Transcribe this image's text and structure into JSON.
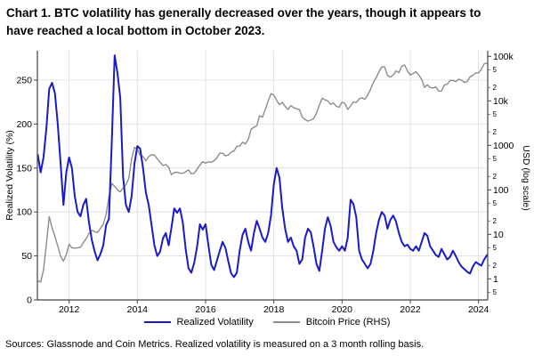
{
  "page": {
    "background": "#ffffff"
  },
  "title": "Chart 1. BTC volatility has generally decreased over the years, though it appears to have reached a local bottom in October 2023.",
  "source_note": "Sources: Glassnode and Coin Metrics. Realized volatility is measured on a 3 month rolling basis.",
  "legend": [
    {
      "label": "Realized Volatility",
      "color": "#1a1ac8"
    },
    {
      "label": "Bitcoin Price (RHS)",
      "color": "#8c8c8c"
    }
  ],
  "chart_data": {
    "type": "line",
    "title": "Chart 1. BTC volatility has generally decreased over the years, though it appears to have reached a local bottom in October 2023.",
    "grid": true,
    "legend_position": "bottom",
    "x_axis": {
      "label": "",
      "ticks": [
        2012,
        2014,
        2016,
        2018,
        2020,
        2022,
        2024
      ],
      "range": [
        2011.07,
        2024.27
      ]
    },
    "left_axis": {
      "label": "Realized Volatility (%)",
      "ticks": [
        0,
        50,
        100,
        150,
        200,
        250
      ],
      "range": [
        0,
        283
      ]
    },
    "right_axis": {
      "label": "USD (log scale)",
      "scale": "log",
      "range": [
        0.34,
        100000
      ],
      "major_ticks": [
        {
          "label": "100k",
          "value": 100000
        },
        {
          "label": "10k",
          "value": 10000
        },
        {
          "label": "1000",
          "value": 1000
        },
        {
          "label": "100",
          "value": 100
        },
        {
          "label": "10",
          "value": 10
        },
        {
          "label": "1",
          "value": 1
        }
      ],
      "minor_ticks": [
        {
          "label": "5",
          "value": 50000
        },
        {
          "label": "2",
          "value": 20000
        },
        {
          "label": "5",
          "value": 5000
        },
        {
          "label": "2",
          "value": 2000
        },
        {
          "label": "5",
          "value": 500
        },
        {
          "label": "2",
          "value": 200
        },
        {
          "label": "5",
          "value": 50
        },
        {
          "label": "2",
          "value": 20
        },
        {
          "label": "5",
          "value": 5
        },
        {
          "label": "2",
          "value": 2
        },
        {
          "label": "5",
          "value": 0.5
        }
      ]
    },
    "x_start": 2011.0833,
    "x_step": 0.083333,
    "series": [
      {
        "name": "Realized Volatility",
        "axis": "left",
        "unit": "%",
        "color": "#1a1ac8",
        "width": 2,
        "values": [
          165,
          145,
          162,
          195,
          240,
          247,
          235,
          200,
          155,
          108,
          145,
          162,
          150,
          118,
          100,
          95,
          108,
          115,
          88,
          68,
          55,
          45,
          52,
          62,
          85,
          92,
          180,
          278,
          258,
          230,
          140,
          108,
          100,
          118,
          155,
          175,
          172,
          150,
          122,
          108,
          85,
          62,
          50,
          55,
          70,
          76,
          62,
          82,
          104,
          99,
          104,
          88,
          58,
          36,
          31,
          42,
          60,
          86,
          80,
          86,
          62,
          40,
          34,
          45,
          56,
          66,
          59,
          44,
          30,
          26,
          31,
          56,
          74,
          81,
          66,
          56,
          76,
          90,
          81,
          71,
          66,
          76,
          96,
          131,
          150,
          139,
          104,
          81,
          66,
          71,
          61,
          56,
          41,
          46,
          71,
          81,
          77,
          60,
          41,
          33,
          56,
          81,
          94,
          84,
          66,
          60,
          56,
          61,
          56,
          71,
          114,
          109,
          94,
          56,
          46,
          41,
          36,
          41,
          56,
          76,
          91,
          100,
          96,
          81,
          91,
          96,
          89,
          76,
          66,
          61,
          63,
          58,
          56,
          61,
          56,
          66,
          76,
          73,
          61,
          56,
          51,
          49,
          58,
          52,
          46,
          49,
          56,
          50,
          43,
          38,
          35,
          32,
          30,
          38,
          43,
          41,
          39,
          46,
          51
        ]
      },
      {
        "name": "Bitcoin Price (RHS)",
        "axis": "right",
        "unit": "USD",
        "color": "#8c8c8c",
        "width": 1.4,
        "values": [
          0.9,
          0.85,
          1.6,
          6,
          25,
          14,
          9,
          5.5,
          3.2,
          2.5,
          3.5,
          6,
          5,
          4.9,
          5,
          5.1,
          6.5,
          8,
          10.5,
          12.3,
          11.5,
          11,
          13.5,
          17,
          28,
          70,
          140,
          120,
          100,
          90,
          110,
          130,
          180,
          500,
          900,
          820,
          600,
          560,
          450,
          560,
          620,
          600,
          500,
          420,
          350,
          370,
          320,
          220,
          245,
          250,
          235,
          235,
          255,
          280,
          230,
          235,
          290,
          360,
          430,
          400,
          425,
          415,
          450,
          530,
          670,
          660,
          580,
          605,
          700,
          740,
          950,
          960,
          1180,
          1070,
          1350,
          2300,
          2550,
          2750,
          4600,
          4300,
          6400,
          9900,
          14500,
          13500,
          10300,
          8200,
          9200,
          7500,
          6400,
          7800,
          7000,
          6600,
          6400,
          4300,
          3800,
          3500,
          3700,
          4000,
          5300,
          8000,
          11500,
          10500,
          10000,
          8300,
          9000,
          7500,
          7200,
          9300,
          8800,
          6400,
          7700,
          9400,
          9150,
          11000,
          11700,
          10800,
          13500,
          18000,
          26000,
          33000,
          45000,
          58000,
          58000,
          37000,
          34000,
          38000,
          47000,
          43000,
          60000,
          64000,
          47000,
          38000,
          41000,
          45000,
          38000,
          30000,
          20000,
          23000,
          20000,
          19400,
          20500,
          16500,
          16600,
          23000,
          23500,
          28500,
          29000,
          27000,
          30500,
          29200,
          26000,
          27000,
          34500,
          37700,
          42300,
          42600,
          51000,
          68000,
          70000
        ]
      }
    ]
  }
}
